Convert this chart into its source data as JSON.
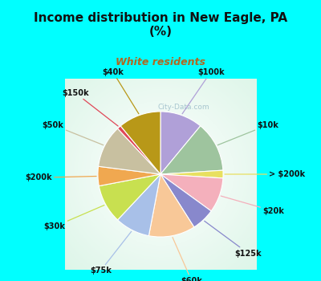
{
  "title": "Income distribution in New Eagle, PA\n(%)",
  "subtitle": "White residents",
  "title_color": "#111111",
  "subtitle_color": "#b06820",
  "bg_cyan": "#00ffff",
  "watermark": "City-Data.com",
  "labels": [
    "$100k",
    "$10k",
    "> $200k",
    "$20k",
    "$125k",
    "$60k",
    "$75k",
    "$30k",
    "$200k",
    "$50k",
    "$150k",
    "$40k"
  ],
  "values": [
    11,
    13,
    2,
    9,
    6,
    12,
    9,
    10,
    5,
    11,
    1,
    11
  ],
  "colors": [
    "#b0a0d8",
    "#9ec49e",
    "#e8e060",
    "#f4b0bc",
    "#8888cc",
    "#f8c898",
    "#a8c0e8",
    "#c8e050",
    "#f0a850",
    "#c8c0a0",
    "#e04858",
    "#b89818"
  ],
  "figsize": [
    4.0,
    3.5
  ],
  "dpi": 100
}
